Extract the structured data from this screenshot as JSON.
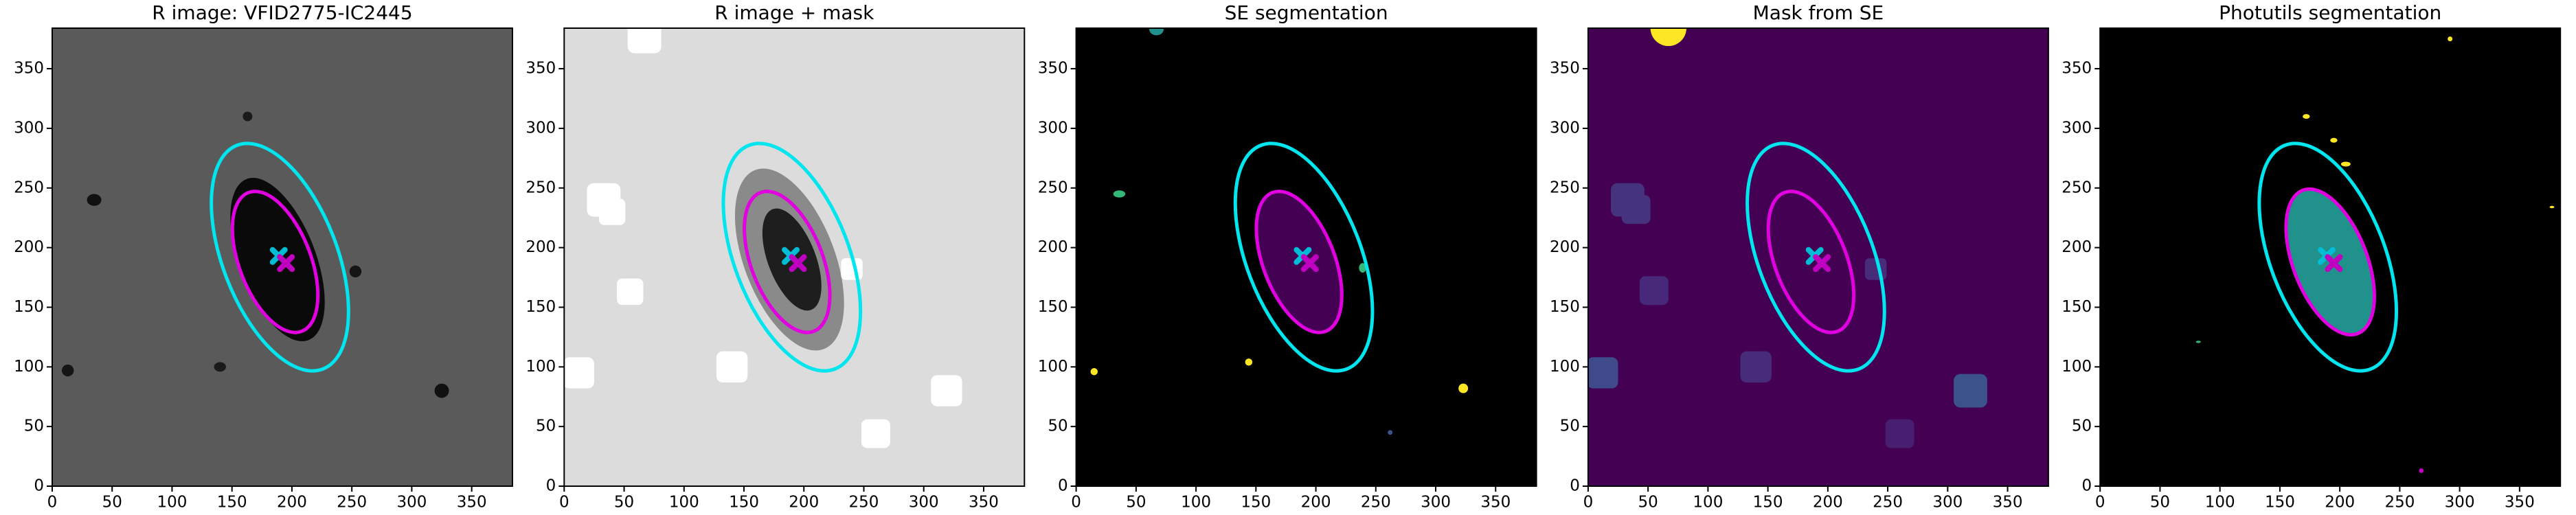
{
  "chart_data": [
    {
      "type": "image",
      "title": "R image: VFID2775-IC2445",
      "xlim": [
        0,
        384
      ],
      "ylim": [
        0,
        384
      ],
      "xticks": [
        0,
        50,
        100,
        150,
        200,
        250,
        300,
        350
      ],
      "yticks": [
        0,
        50,
        100,
        150,
        200,
        250,
        300,
        350
      ],
      "background": "#5a5a5a",
      "blobs": [
        {
          "x": 188,
          "y": 190,
          "rx": 72,
          "ry": 32,
          "angle": 111,
          "color": "#0a0a0a"
        },
        {
          "x": 35,
          "y": 240,
          "rx": 6,
          "ry": 5,
          "angle": 0,
          "color": "#111111"
        },
        {
          "x": 325,
          "y": 80,
          "rx": 6,
          "ry": 6,
          "angle": 0,
          "color": "#111111"
        },
        {
          "x": 13,
          "y": 97,
          "rx": 5,
          "ry": 5,
          "angle": 0,
          "color": "#151515"
        },
        {
          "x": 253,
          "y": 180,
          "rx": 5,
          "ry": 5,
          "angle": 0,
          "color": "#151515"
        },
        {
          "x": 140,
          "y": 100,
          "rx": 5,
          "ry": 4,
          "angle": 0,
          "color": "#1a1a1a"
        },
        {
          "x": 163,
          "y": 310,
          "rx": 4,
          "ry": 4,
          "angle": 0,
          "color": "#1a1a1a"
        }
      ],
      "squares": [],
      "ellipses": [
        {
          "x": 190,
          "y": 192,
          "rx": 100,
          "ry": 48,
          "angle": 111,
          "color": "#00e5ee"
        },
        {
          "x": 186,
          "y": 188,
          "rx": 62,
          "ry": 30,
          "angle": 111,
          "color": "#e000e0"
        }
      ],
      "markers": [
        {
          "x": 189,
          "y": 193,
          "color": "#00bcd4"
        },
        {
          "x": 195,
          "y": 187,
          "color": "#c000c0"
        }
      ]
    },
    {
      "type": "image",
      "title": "R image + mask",
      "xlim": [
        0,
        384
      ],
      "ylim": [
        0,
        384
      ],
      "xticks": [
        0,
        50,
        100,
        150,
        200,
        250,
        300,
        350
      ],
      "yticks": [
        0,
        50,
        100,
        150,
        200,
        250,
        300,
        350
      ],
      "background": "#dcdcdc",
      "blobs": [
        {
          "x": 188,
          "y": 190,
          "rx": 80,
          "ry": 38,
          "angle": 111,
          "color": "#8a8a8a"
        },
        {
          "x": 190,
          "y": 190,
          "rx": 45,
          "ry": 20,
          "angle": 111,
          "color": "#1e1e1e"
        }
      ],
      "squares": [
        {
          "x": 67,
          "y": 377,
          "size": 28,
          "color": "#ffffff"
        },
        {
          "x": 33,
          "y": 240,
          "size": 28,
          "color": "#ffffff"
        },
        {
          "x": 40,
          "y": 230,
          "size": 22,
          "color": "#ffffff"
        },
        {
          "x": 55,
          "y": 163,
          "size": 22,
          "color": "#ffffff"
        },
        {
          "x": 140,
          "y": 100,
          "size": 26,
          "color": "#ffffff"
        },
        {
          "x": 12,
          "y": 95,
          "size": 26,
          "color": "#ffffff"
        },
        {
          "x": 319,
          "y": 80,
          "size": 26,
          "color": "#ffffff"
        },
        {
          "x": 260,
          "y": 44,
          "size": 24,
          "color": "#ffffff"
        },
        {
          "x": 240,
          "y": 182,
          "size": 18,
          "color": "#ffffff"
        }
      ],
      "ellipses": [
        {
          "x": 190,
          "y": 192,
          "rx": 100,
          "ry": 48,
          "angle": 111,
          "color": "#00e5ee"
        },
        {
          "x": 186,
          "y": 188,
          "rx": 62,
          "ry": 30,
          "angle": 111,
          "color": "#e000e0"
        }
      ],
      "markers": [
        {
          "x": 189,
          "y": 193,
          "color": "#00bcd4"
        },
        {
          "x": 195,
          "y": 187,
          "color": "#c000c0"
        }
      ]
    },
    {
      "type": "image",
      "title": "SE segmentation",
      "xlim": [
        0,
        384
      ],
      "ylim": [
        0,
        384
      ],
      "xticks": [
        0,
        50,
        100,
        150,
        200,
        250,
        300,
        350
      ],
      "yticks": [
        0,
        50,
        100,
        150,
        200,
        250,
        300,
        350
      ],
      "background": "#000000",
      "blobs": [
        {
          "x": 186,
          "y": 188,
          "rx": 62,
          "ry": 30,
          "angle": 111,
          "color": "#440154"
        },
        {
          "x": 67,
          "y": 383,
          "rx": 6,
          "ry": 5,
          "angle": 0,
          "color": "#21918c"
        },
        {
          "x": 36,
          "y": 245,
          "rx": 5,
          "ry": 3,
          "angle": 0,
          "color": "#35b779"
        },
        {
          "x": 239,
          "y": 183,
          "rx": 3,
          "ry": 4,
          "angle": 0,
          "color": "#35b779"
        },
        {
          "x": 15,
          "y": 96,
          "rx": 3,
          "ry": 3,
          "angle": 0,
          "color": "#fde725"
        },
        {
          "x": 144,
          "y": 104,
          "rx": 3,
          "ry": 3,
          "angle": 0,
          "color": "#fde725"
        },
        {
          "x": 323,
          "y": 82,
          "rx": 4,
          "ry": 4,
          "angle": 0,
          "color": "#fde725"
        },
        {
          "x": 262,
          "y": 45,
          "rx": 2,
          "ry": 2,
          "angle": 0,
          "color": "#3b528b"
        }
      ],
      "squares": [],
      "ellipses": [
        {
          "x": 190,
          "y": 192,
          "rx": 100,
          "ry": 48,
          "angle": 111,
          "color": "#00e5ee"
        },
        {
          "x": 186,
          "y": 188,
          "rx": 62,
          "ry": 30,
          "angle": 111,
          "color": "#e000e0"
        }
      ],
      "markers": [
        {
          "x": 189,
          "y": 193,
          "color": "#00bcd4"
        },
        {
          "x": 195,
          "y": 187,
          "color": "#c000c0"
        }
      ]
    },
    {
      "type": "image",
      "title": "Mask from SE",
      "xlim": [
        0,
        384
      ],
      "ylim": [
        0,
        384
      ],
      "xticks": [
        0,
        50,
        100,
        150,
        200,
        250,
        300,
        350
      ],
      "yticks": [
        0,
        50,
        100,
        150,
        200,
        250,
        300,
        350
      ],
      "background": "#440154",
      "blobs": [
        {
          "x": 67,
          "y": 384,
          "rx": 15,
          "ry": 15,
          "angle": 0,
          "color": "#fde725"
        }
      ],
      "squares": [
        {
          "x": 33,
          "y": 240,
          "size": 28,
          "color": "#46337e"
        },
        {
          "x": 40,
          "y": 232,
          "size": 24,
          "color": "#46337e"
        },
        {
          "x": 55,
          "y": 164,
          "size": 24,
          "color": "#482878"
        },
        {
          "x": 140,
          "y": 100,
          "size": 26,
          "color": "#472c7a"
        },
        {
          "x": 12,
          "y": 95,
          "size": 26,
          "color": "#3e4a89"
        },
        {
          "x": 319,
          "y": 80,
          "size": 28,
          "color": "#3b528b"
        },
        {
          "x": 260,
          "y": 44,
          "size": 24,
          "color": "#481f70"
        },
        {
          "x": 240,
          "y": 182,
          "size": 18,
          "color": "#472c7a"
        }
      ],
      "ellipses": [
        {
          "x": 190,
          "y": 192,
          "rx": 100,
          "ry": 48,
          "angle": 111,
          "color": "#00e5ee"
        },
        {
          "x": 186,
          "y": 188,
          "rx": 62,
          "ry": 30,
          "angle": 111,
          "color": "#e000e0"
        }
      ],
      "markers": [
        {
          "x": 189,
          "y": 193,
          "color": "#00bcd4"
        },
        {
          "x": 195,
          "y": 187,
          "color": "#c000c0"
        }
      ]
    },
    {
      "type": "image",
      "title": "Photutils segmentation",
      "xlim": [
        0,
        384
      ],
      "ylim": [
        0,
        384
      ],
      "xticks": [
        0,
        50,
        100,
        150,
        200,
        250,
        300,
        350
      ],
      "yticks": [
        0,
        50,
        100,
        150,
        200,
        250,
        300,
        350
      ],
      "background": "#000000",
      "blobs": [
        {
          "x": 192,
          "y": 188,
          "rx": 64,
          "ry": 31,
          "angle": 111,
          "color": "#21918c"
        },
        {
          "x": 172,
          "y": 310,
          "rx": 3,
          "ry": 2,
          "angle": 0,
          "color": "#fde725"
        },
        {
          "x": 195,
          "y": 290,
          "rx": 3,
          "ry": 2,
          "angle": 0,
          "color": "#fde725"
        },
        {
          "x": 205,
          "y": 270,
          "rx": 4,
          "ry": 2,
          "angle": 0,
          "color": "#fde725"
        },
        {
          "x": 292,
          "y": 375,
          "rx": 2,
          "ry": 2,
          "angle": 0,
          "color": "#fde725"
        },
        {
          "x": 377,
          "y": 234,
          "rx": 2,
          "ry": 1,
          "angle": 0,
          "color": "#fde725"
        },
        {
          "x": 82,
          "y": 121,
          "rx": 2,
          "ry": 1,
          "angle": 0,
          "color": "#35b779"
        },
        {
          "x": 268,
          "y": 13,
          "rx": 2,
          "ry": 2,
          "angle": 0,
          "color": "#c000c0"
        }
      ],
      "squares": [],
      "ellipses": [
        {
          "x": 190,
          "y": 192,
          "rx": 100,
          "ry": 48,
          "angle": 111,
          "color": "#00e5ee"
        },
        {
          "x": 192,
          "y": 188,
          "rx": 64,
          "ry": 31,
          "angle": 111,
          "color": "#e000e0"
        }
      ],
      "markers": [
        {
          "x": 189,
          "y": 193,
          "color": "#00bcd4"
        },
        {
          "x": 195,
          "y": 187,
          "color": "#c000c0"
        }
      ]
    }
  ]
}
